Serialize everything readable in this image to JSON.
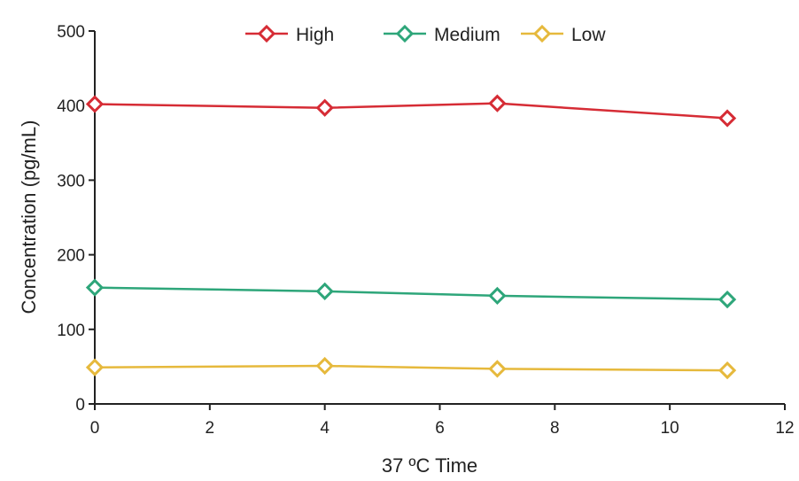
{
  "chart_data": {
    "type": "line",
    "xlabel": "37 ºC Time",
    "ylabel": "Concentration (pg/mL)",
    "xlim": [
      0,
      12
    ],
    "ylim": [
      0,
      500
    ],
    "xticks": [
      0,
      2,
      4,
      6,
      8,
      10,
      12
    ],
    "yticks": [
      0,
      100,
      200,
      300,
      400,
      500
    ],
    "grid": false,
    "legend_position": "top-center",
    "x": [
      0,
      4,
      7,
      11
    ],
    "series": [
      {
        "name": "High",
        "color": "#d62c35",
        "marker": "diamond-open",
        "values": [
          402,
          397,
          403,
          383
        ]
      },
      {
        "name": "Medium",
        "color": "#2ea67a",
        "marker": "diamond-open",
        "values": [
          156,
          151,
          145,
          140
        ]
      },
      {
        "name": "Low",
        "color": "#e6b93c",
        "marker": "diamond-open",
        "values": [
          49,
          51,
          47,
          45
        ]
      }
    ]
  }
}
